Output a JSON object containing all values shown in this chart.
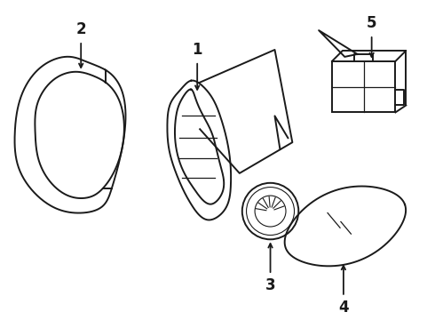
{
  "background_color": "#ffffff",
  "line_color": "#1a1a1a",
  "line_width": 1.4,
  "label_fontsize": 12,
  "label_fontweight": "bold"
}
